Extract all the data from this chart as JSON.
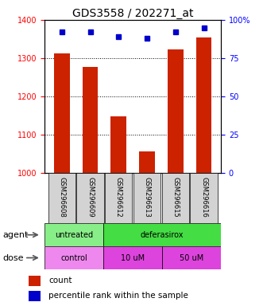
{
  "title": "GDS3558 / 202271_at",
  "samples": [
    "GSM296608",
    "GSM296609",
    "GSM296612",
    "GSM296613",
    "GSM296615",
    "GSM296616"
  ],
  "counts": [
    1313,
    1278,
    1148,
    1057,
    1322,
    1355
  ],
  "percentiles": [
    92,
    92,
    89,
    88,
    92,
    95
  ],
  "ylim_left": [
    1000,
    1400
  ],
  "ylim_right": [
    0,
    100
  ],
  "yticks_left": [
    1000,
    1100,
    1200,
    1300,
    1400
  ],
  "yticks_right": [
    0,
    25,
    50,
    75,
    100
  ],
  "ytick_right_labels": [
    "0",
    "25",
    "50",
    "75",
    "100%"
  ],
  "bar_color": "#cc2200",
  "dot_color": "#0000cc",
  "agent_untreated_color": "#88ee88",
  "agent_deferasirox_color": "#44dd44",
  "dose_control_color": "#ee88ee",
  "dose_uM_color": "#dd44dd",
  "legend_count_label": "count",
  "legend_pct_label": "percentile rank within the sample",
  "xlabel_agent": "agent",
  "xlabel_dose": "dose",
  "title_fontsize": 10,
  "tick_fontsize": 7,
  "label_fontsize": 7,
  "row_label_fontsize": 8,
  "sample_fontsize": 6
}
